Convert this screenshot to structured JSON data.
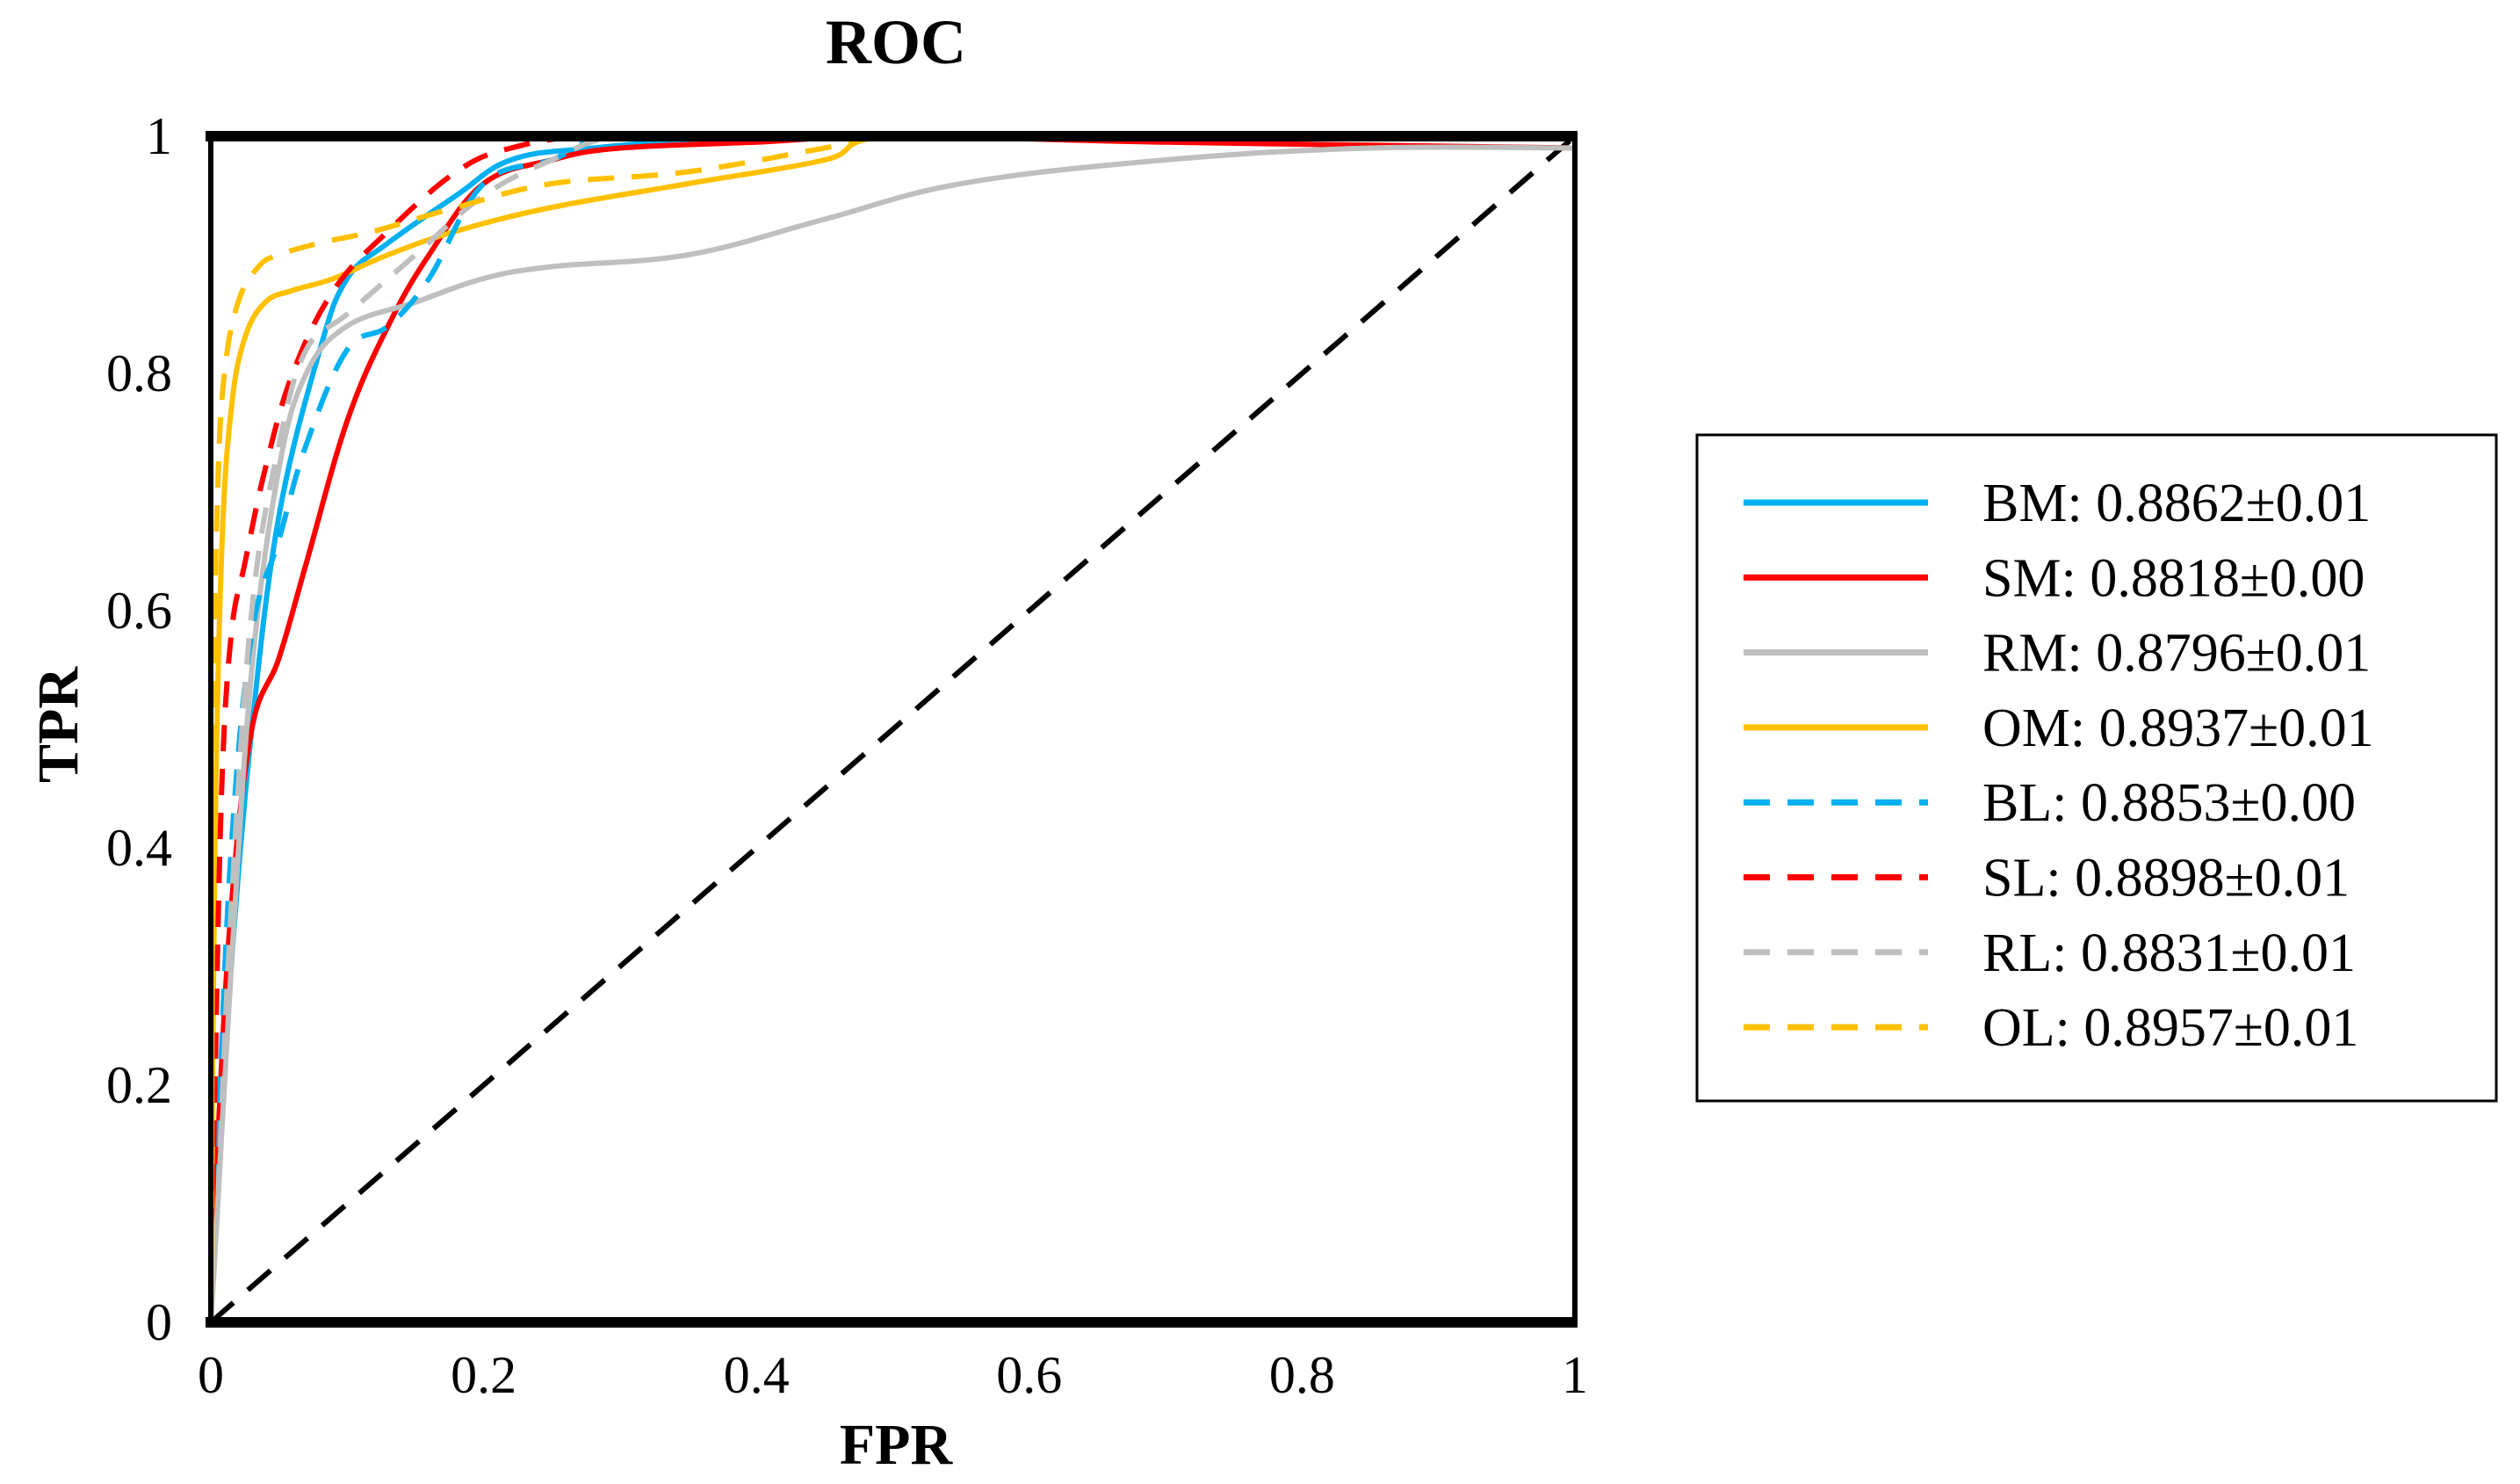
{
  "chart_data": {
    "type": "line",
    "title": "ROC",
    "xlabel": "FPR",
    "ylabel": "TPR",
    "xlim": [
      0,
      1
    ],
    "ylim": [
      0,
      1
    ],
    "xticks": [
      "0",
      "0.2",
      "0.4",
      "0.6",
      "0.8",
      "1"
    ],
    "yticks": [
      "0",
      "0.2",
      "0.4",
      "0.6",
      "0.8",
      "1"
    ],
    "legend_position": "right",
    "series": [
      {
        "name": "BM",
        "legend": "BM: 0.8862±0.01",
        "color": "#00b0f0",
        "dash": "solid",
        "x": [
          0,
          0.005,
          0.015,
          0.03,
          0.05,
          0.08,
          0.1,
          0.13,
          0.18,
          0.22,
          0.28,
          0.4,
          0.5,
          0.7,
          1.0
        ],
        "y": [
          0,
          0.1,
          0.3,
          0.5,
          0.68,
          0.82,
          0.88,
          0.91,
          0.95,
          0.98,
          0.99,
          1.0,
          1.0,
          1.0,
          1.0
        ]
      },
      {
        "name": "SM",
        "legend": "SM: 0.8818±0.00",
        "color": "#ff0000",
        "dash": "solid",
        "x": [
          0,
          0.005,
          0.015,
          0.03,
          0.05,
          0.07,
          0.1,
          0.13,
          0.16,
          0.2,
          0.25,
          0.3,
          0.4,
          0.5,
          0.7,
          1.0
        ],
        "y": [
          0,
          0.15,
          0.35,
          0.5,
          0.56,
          0.64,
          0.76,
          0.84,
          0.9,
          0.96,
          0.98,
          0.99,
          0.995,
          1.0,
          0.995,
          0.99
        ]
      },
      {
        "name": "RM",
        "legend": "RM: 0.8796±0.01",
        "color": "#bfbfbf",
        "dash": "solid",
        "x": [
          0,
          0.005,
          0.015,
          0.03,
          0.05,
          0.07,
          0.1,
          0.15,
          0.2,
          0.25,
          0.35,
          0.45,
          0.55,
          0.7,
          0.85,
          1.0
        ],
        "y": [
          0,
          0.1,
          0.3,
          0.55,
          0.72,
          0.8,
          0.84,
          0.86,
          0.88,
          0.89,
          0.9,
          0.93,
          0.96,
          0.98,
          0.99,
          0.99
        ]
      },
      {
        "name": "OM",
        "legend": "OM: 0.8937±0.01",
        "color": "#ffc000",
        "dash": "solid",
        "x": [
          0,
          0.003,
          0.008,
          0.015,
          0.025,
          0.04,
          0.06,
          0.09,
          0.13,
          0.18,
          0.25,
          0.35,
          0.45,
          0.5,
          0.7,
          1.0
        ],
        "y": [
          0,
          0.4,
          0.65,
          0.77,
          0.83,
          0.86,
          0.87,
          0.88,
          0.9,
          0.92,
          0.94,
          0.96,
          0.98,
          1.0,
          1.0,
          1.0
        ]
      },
      {
        "name": "BL",
        "legend": "BL: 0.8853±0.00",
        "color": "#00b0f0",
        "dash": "dashed",
        "x": [
          0,
          0.005,
          0.015,
          0.03,
          0.05,
          0.07,
          0.1,
          0.13,
          0.16,
          0.2,
          0.25,
          0.3,
          0.45,
          0.6,
          0.8,
          1.0
        ],
        "y": [
          0,
          0.15,
          0.4,
          0.58,
          0.66,
          0.74,
          0.82,
          0.84,
          0.88,
          0.96,
          0.98,
          1.0,
          1.0,
          1.0,
          1.0,
          1.0
        ]
      },
      {
        "name": "SL",
        "legend": "SL: 0.8898±0.01",
        "color": "#ff0000",
        "dash": "dashed",
        "x": [
          0,
          0.003,
          0.008,
          0.015,
          0.025,
          0.04,
          0.06,
          0.09,
          0.13,
          0.18,
          0.22,
          0.28,
          0.4,
          0.6,
          1.0
        ],
        "y": [
          0,
          0.2,
          0.45,
          0.58,
          0.64,
          0.72,
          0.8,
          0.87,
          0.92,
          0.97,
          0.99,
          1.0,
          1.0,
          1.0,
          1.0
        ]
      },
      {
        "name": "RL",
        "legend": "RL: 0.8831±0.01",
        "color": "#bfbfbf",
        "dash": "dashed",
        "x": [
          0,
          0.005,
          0.015,
          0.03,
          0.05,
          0.07,
          0.1,
          0.15,
          0.2,
          0.25,
          0.3,
          0.4,
          0.6,
          0.8,
          1.0
        ],
        "y": [
          0,
          0.1,
          0.35,
          0.6,
          0.74,
          0.82,
          0.85,
          0.9,
          0.95,
          0.98,
          1.0,
          1.0,
          1.0,
          1.0,
          1.0
        ]
      },
      {
        "name": "OL",
        "legend": "OL: 0.8957±0.01",
        "color": "#ffc000",
        "dash": "dashed",
        "x": [
          0,
          0.002,
          0.005,
          0.01,
          0.02,
          0.035,
          0.05,
          0.08,
          0.12,
          0.18,
          0.25,
          0.35,
          0.45,
          0.5,
          0.7,
          1.0
        ],
        "y": [
          0,
          0.5,
          0.7,
          0.8,
          0.86,
          0.89,
          0.9,
          0.91,
          0.92,
          0.94,
          0.96,
          0.97,
          0.99,
          1.0,
          1.0,
          1.0
        ]
      }
    ],
    "reference_line": {
      "name": "random-baseline",
      "x": [
        0,
        1
      ],
      "y": [
        0,
        1
      ],
      "color": "#000000",
      "dash": "dashed"
    }
  }
}
